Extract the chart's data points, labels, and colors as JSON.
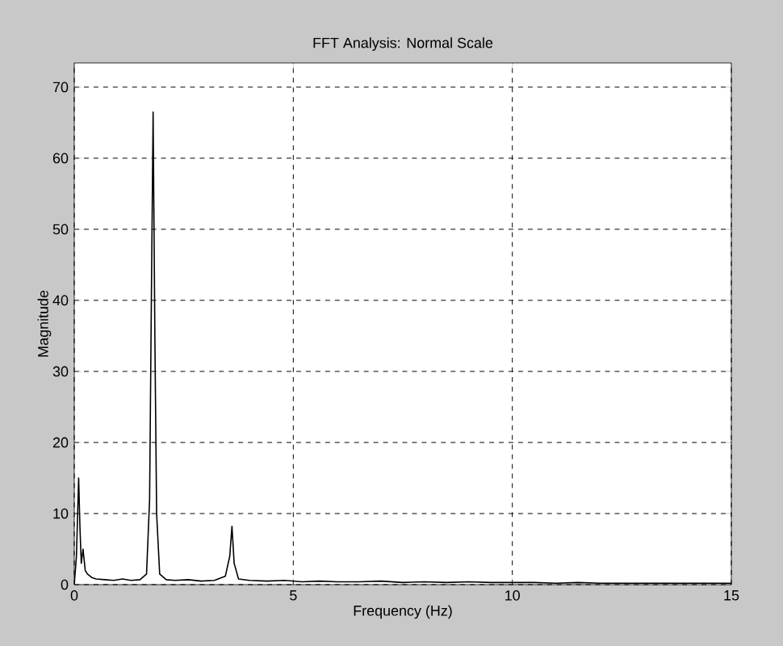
{
  "chart_data": {
    "type": "line",
    "title": "FFT Analysis: Normal Scale",
    "xlabel": "Frequency (Hz)",
    "ylabel": "Magnitude",
    "xlim": [
      0,
      15
    ],
    "ylim": [
      0,
      73.4
    ],
    "xticks": [
      0,
      5,
      10,
      15
    ],
    "yticks": [
      0,
      10,
      20,
      30,
      40,
      50,
      60,
      70
    ],
    "grid": true,
    "series": [
      {
        "color": "#000000",
        "x": [
          0,
          0.05,
          0.1,
          0.13,
          0.16,
          0.2,
          0.25,
          0.3,
          0.4,
          0.5,
          0.7,
          0.9,
          1.1,
          1.3,
          1.5,
          1.65,
          1.72,
          1.76,
          1.8,
          1.84,
          1.88,
          1.95,
          2.1,
          2.3,
          2.6,
          2.9,
          3.2,
          3.45,
          3.55,
          3.6,
          3.65,
          3.75,
          4.0,
          4.4,
          4.8,
          5.2,
          5.6,
          6.0,
          6.5,
          7.0,
          7.5,
          8.0,
          8.5,
          9.0,
          9.5,
          10.0,
          10.5,
          11.0,
          11.5,
          12.0,
          12.5,
          13.0,
          13.5,
          14.0,
          14.5,
          15.0
        ],
        "values": [
          0,
          4,
          15,
          8,
          3,
          5,
          2,
          1.5,
          1,
          0.8,
          0.7,
          0.6,
          0.8,
          0.6,
          0.7,
          1.5,
          12,
          40,
          66.5,
          35,
          10,
          1.5,
          0.7,
          0.6,
          0.7,
          0.5,
          0.6,
          1.2,
          4,
          8.2,
          3,
          0.8,
          0.6,
          0.5,
          0.6,
          0.4,
          0.5,
          0.4,
          0.4,
          0.5,
          0.3,
          0.4,
          0.3,
          0.4,
          0.3,
          0.3,
          0.3,
          0.2,
          0.3,
          0.2,
          0.2,
          0.2,
          0.2,
          0.2,
          0.2,
          0.2
        ]
      }
    ]
  }
}
